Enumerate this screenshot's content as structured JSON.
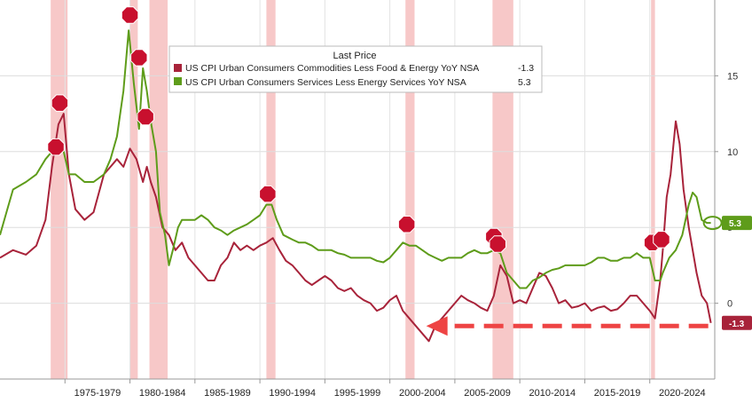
{
  "chart_data": {
    "type": "line",
    "legend": {
      "title": "Last Price",
      "placement": "top-center"
    },
    "x_range": [
      1970,
      2025
    ],
    "ylim": [
      -5,
      20
    ],
    "y_ticks": [
      0,
      5,
      10,
      15
    ],
    "x_tick_labels": [
      "1975-1979",
      "1980-1984",
      "1985-1989",
      "1990-1994",
      "1995-1999",
      "2000-2004",
      "2005-2009",
      "2010-2014",
      "2015-2019",
      "2020-2024"
    ],
    "grid": true,
    "recessions": [
      [
        1973.9,
        1975.2
      ],
      [
        1980.0,
        1980.6
      ],
      [
        1981.5,
        1982.9
      ],
      [
        1990.5,
        1991.2
      ],
      [
        2001.2,
        2001.9
      ],
      [
        2007.9,
        2009.5
      ],
      [
        2020.1,
        2020.4
      ]
    ],
    "series": [
      {
        "name": "US CPI Urban Consumers Commodities Less Food & Energy YoY NSA",
        "last_value": "-1.3",
        "color": "#a8233a",
        "x": [
          1970.0,
          1971.0,
          1972.0,
          1972.8,
          1973.5,
          1974.0,
          1974.5,
          1974.9,
          1975.3,
          1975.8,
          1976.5,
          1977.2,
          1978.0,
          1978.5,
          1979.0,
          1979.5,
          1980.0,
          1980.5,
          1981.0,
          1981.3,
          1981.6,
          1982.0,
          1982.5,
          1983.0,
          1983.5,
          1984.0,
          1984.5,
          1985.0,
          1985.5,
          1986.0,
          1986.5,
          1987.0,
          1987.5,
          1988.0,
          1988.5,
          1989.0,
          1989.5,
          1990.0,
          1990.5,
          1991.0,
          1991.5,
          1992.0,
          1992.5,
          1993.0,
          1993.5,
          1994.0,
          1994.5,
          1995.0,
          1995.5,
          1996.0,
          1996.5,
          1997.0,
          1997.5,
          1998.0,
          1998.5,
          1999.0,
          1999.5,
          2000.0,
          2000.5,
          2001.0,
          2001.5,
          2002.0,
          2002.5,
          2003.0,
          2003.5,
          2004.0,
          2004.5,
          2005.0,
          2005.5,
          2006.0,
          2006.5,
          2007.0,
          2007.5,
          2008.0,
          2008.5,
          2009.0,
          2009.5,
          2010.0,
          2010.5,
          2011.0,
          2011.5,
          2012.0,
          2012.5,
          2013.0,
          2013.5,
          2014.0,
          2014.5,
          2015.0,
          2015.5,
          2016.0,
          2016.5,
          2017.0,
          2017.5,
          2018.0,
          2018.5,
          2019.0,
          2019.5,
          2020.0,
          2020.4,
          2020.8,
          2021.0,
          2021.3,
          2021.6,
          2022.0,
          2022.3,
          2022.6,
          2023.0,
          2023.3,
          2023.6,
          2024.0,
          2024.4,
          2024.7
        ],
        "y": [
          3.0,
          3.5,
          3.2,
          3.8,
          5.5,
          9.0,
          11.8,
          12.5,
          8.5,
          6.2,
          5.5,
          6.0,
          8.5,
          9.0,
          9.5,
          9.0,
          10.2,
          9.5,
          8.0,
          9.0,
          8.0,
          7.0,
          5.0,
          4.5,
          3.5,
          4.0,
          3.0,
          2.5,
          2.0,
          1.5,
          1.5,
          2.5,
          3.0,
          4.0,
          3.5,
          3.8,
          3.5,
          3.8,
          4.0,
          4.3,
          3.5,
          2.8,
          2.5,
          2.0,
          1.5,
          1.2,
          1.5,
          1.8,
          1.5,
          1.0,
          0.8,
          1.0,
          0.5,
          0.2,
          0.0,
          -0.5,
          -0.3,
          0.2,
          0.5,
          -0.5,
          -1.0,
          -1.5,
          -2.0,
          -2.5,
          -1.5,
          -1.0,
          -0.5,
          0.0,
          0.5,
          0.2,
          0.0,
          -0.3,
          -0.5,
          0.5,
          2.5,
          1.8,
          0.0,
          0.2,
          0.0,
          1.0,
          2.0,
          1.8,
          1.0,
          0.0,
          0.2,
          -0.3,
          -0.2,
          0.0,
          -0.5,
          -0.3,
          -0.2,
          -0.5,
          -0.4,
          0.0,
          0.5,
          0.5,
          0.0,
          -0.5,
          -1.0,
          1.5,
          3.5,
          7.0,
          8.5,
          12.0,
          10.5,
          7.5,
          5.0,
          3.5,
          2.0,
          0.5,
          0.0,
          -1.3
        ]
      },
      {
        "name": "US CPI Urban Consumers Services Less Energy Services YoY NSA",
        "last_value": "5.3",
        "color": "#5e9c1a",
        "x": [
          1970.0,
          1970.5,
          1971.0,
          1972.0,
          1972.8,
          1973.5,
          1974.0,
          1974.5,
          1974.9,
          1975.3,
          1975.8,
          1976.5,
          1977.2,
          1978.0,
          1978.5,
          1979.0,
          1979.5,
          1979.9,
          1980.3,
          1980.7,
          1981.0,
          1981.3,
          1981.6,
          1982.0,
          1982.3,
          1982.7,
          1983.0,
          1983.3,
          1983.7,
          1984.0,
          1984.5,
          1985.0,
          1985.5,
          1986.0,
          1986.5,
          1987.0,
          1987.5,
          1988.0,
          1988.5,
          1989.0,
          1989.5,
          1990.0,
          1990.5,
          1990.9,
          1991.3,
          1991.8,
          1992.5,
          1993.0,
          1993.5,
          1994.0,
          1994.5,
          1995.0,
          1995.5,
          1996.0,
          1996.5,
          1997.0,
          1997.5,
          1998.0,
          1998.5,
          1999.0,
          1999.5,
          2000.0,
          2000.5,
          2001.0,
          2001.5,
          2002.0,
          2002.5,
          2003.0,
          2003.5,
          2004.0,
          2004.5,
          2005.0,
          2005.5,
          2006.0,
          2006.5,
          2007.0,
          2007.5,
          2008.0,
          2008.5,
          2009.0,
          2009.5,
          2010.0,
          2010.5,
          2011.0,
          2011.5,
          2012.0,
          2012.5,
          2013.0,
          2013.5,
          2014.0,
          2014.5,
          2015.0,
          2015.5,
          2016.0,
          2016.5,
          2017.0,
          2017.5,
          2018.0,
          2018.5,
          2019.0,
          2019.5,
          2020.0,
          2020.4,
          2020.8,
          2021.0,
          2021.5,
          2022.0,
          2022.5,
          2023.0,
          2023.3,
          2023.6,
          2024.0,
          2024.4,
          2024.7
        ],
        "y": [
          4.5,
          6.0,
          7.5,
          8.0,
          8.5,
          9.5,
          10.0,
          10.5,
          10.0,
          8.5,
          8.5,
          8.0,
          8.0,
          8.5,
          9.5,
          11.0,
          14.0,
          18.0,
          14.5,
          11.5,
          15.5,
          14.0,
          12.0,
          10.0,
          6.0,
          4.5,
          2.5,
          3.5,
          5.0,
          5.5,
          5.5,
          5.5,
          5.8,
          5.5,
          5.0,
          4.8,
          4.5,
          4.8,
          5.0,
          5.2,
          5.5,
          5.8,
          6.5,
          6.5,
          5.5,
          4.5,
          4.2,
          4.0,
          4.0,
          3.8,
          3.5,
          3.5,
          3.5,
          3.3,
          3.2,
          3.0,
          3.0,
          3.0,
          3.0,
          2.8,
          2.7,
          3.0,
          3.5,
          4.0,
          3.8,
          3.8,
          3.5,
          3.2,
          3.0,
          2.8,
          3.0,
          3.0,
          3.0,
          3.3,
          3.5,
          3.3,
          3.3,
          3.5,
          3.3,
          2.0,
          1.5,
          1.0,
          1.0,
          1.5,
          1.7,
          2.0,
          2.2,
          2.3,
          2.5,
          2.5,
          2.5,
          2.5,
          2.7,
          3.0,
          3.0,
          2.8,
          2.8,
          3.0,
          3.0,
          3.3,
          3.0,
          3.0,
          1.5,
          1.5,
          2.0,
          3.0,
          3.5,
          4.5,
          6.5,
          7.3,
          7.0,
          5.5,
          5.3,
          5.3
        ]
      }
    ],
    "annotation_arrow": {
      "from_x": 2024.5,
      "to_x": 2002.8,
      "y": -1.5,
      "color": "#ee4444"
    }
  }
}
